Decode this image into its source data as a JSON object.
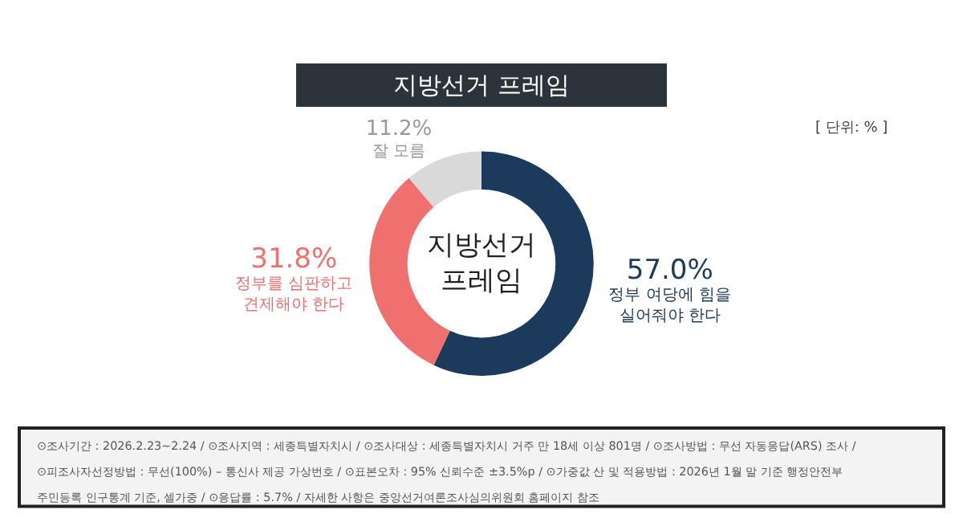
{
  "chart_data": {
    "type": "donut",
    "title": "지방선거 프레임",
    "categories": [
      "정부 여당에 힘을\n실어줘야 한다",
      "정부를 심판하고\n견제해야 한다",
      "잘 모름"
    ],
    "values": [
      57.0,
      31.8,
      11.2
    ],
    "value_labels": [
      "57.0%",
      "31.8%",
      "11.2%"
    ],
    "colors": [
      "#1b3a5c",
      "#f07070",
      "#d9d9d9"
    ],
    "legend": false,
    "annotations": [
      "지방선거\n프레임",
      "[ 단위: % ]",
      "⊙조사기간 : 2026.2.23~2.24 / ⊙조사지역 : 세종특별자치시 / ⊙조사대상 : 세종특별자치시 거주 만 18세 이상 801명 / ⊙조사방법 : 무선 자동응답(ARS) 조사 /",
      "⊙피조사자선정방법 : 무선(100%) – 통신사 제공 가상번호 / ⊙표본오차 : 95% 신뢰수준 ±3.5%p / ⊙가중값 산 및 적용방법 : 2026년 1월 말 기준 행정안전부",
      "주민등록 인구통계 기준, 셀가중 / ⊙응답률 : 5.7% / 자세한 사항은 중앙선거여론조사심의위원회 홈페이지 참조"
    ]
  }
}
